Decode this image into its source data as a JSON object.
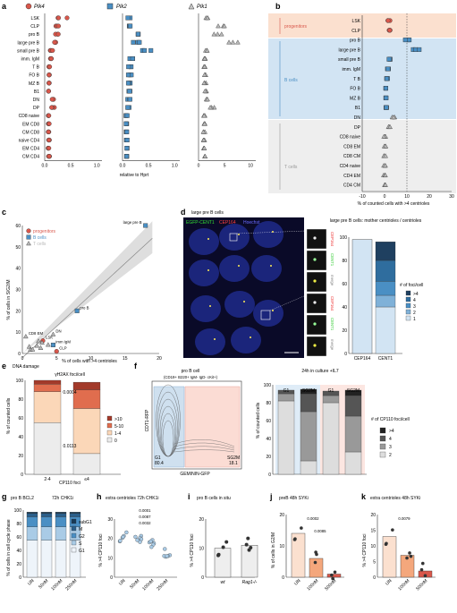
{
  "colors": {
    "red": "#d9574b",
    "blue": "#4a8fc4",
    "grey": "#b8b8b8",
    "peach": "#fbe0cf",
    "lightblue": "#d2e4f3",
    "lightgrey": "#eeeeee"
  },
  "panel_a": {
    "letter": "a",
    "genes": [
      "Plk4",
      "Plk2",
      "Plk1"
    ],
    "xlabel": "relative to Hprt",
    "rows": [
      "LSK",
      "CLP",
      "pro B",
      "large pre B",
      "small pre B",
      "imm. IgM",
      "T B",
      "FO B",
      "MZ B",
      "B1",
      "DN",
      "DP",
      "CD8 naive",
      "EM CD8",
      "CM CD8",
      "naive CD4",
      "EM CD4",
      "CM CD4"
    ],
    "ticks": {
      "Plk4": [
        "0.0",
        "0.5",
        "1.0"
      ],
      "Plk2": [
        "0.0",
        "0.5",
        "1.0"
      ],
      "Plk1": [
        "0",
        "5",
        "10"
      ]
    }
  },
  "chart_data": [
    {
      "type": "scatter",
      "panel": "b",
      "xlabel": "% of counted cells with >4 centrioles",
      "xlim": [
        -10,
        30
      ],
      "ticks": [
        "-10",
        "0",
        "10",
        "20",
        "30"
      ],
      "rows": [
        "LSK",
        "CLP",
        "pro B",
        "large pre B",
        "small pre B",
        "imm. IgM",
        "T B",
        "FO B",
        "MZ B",
        "B1",
        "DN",
        "DP",
        "CD8 naive",
        "CD8 EM",
        "CD8 CM",
        "CD4 naive",
        "CD4 EM",
        "CD4 CM"
      ],
      "values": [
        2,
        2,
        10,
        16,
        2,
        1.5,
        1,
        1,
        1,
        1,
        4,
        2,
        0,
        0,
        0,
        0,
        0,
        0
      ],
      "group_labels": [
        "progenitors",
        "B cells",
        "T cells"
      ]
    },
    {
      "type": "scatter",
      "panel": "c",
      "xlabel": "% of cells with >4 centrioles",
      "ylabel": "% of cells in S/G2/M",
      "xlim": [
        0,
        20
      ],
      "ylim": [
        0,
        60
      ],
      "xticks": [
        "0",
        "5",
        "10",
        "15",
        "20"
      ],
      "yticks": [
        "0",
        "10",
        "20",
        "30",
        "40",
        "50",
        "60"
      ],
      "points": [
        {
          "label": "large pre B",
          "x": 18,
          "y": 60
        },
        {
          "label": "pro B",
          "x": 8,
          "y": 20
        },
        {
          "label": "DN",
          "x": 4.5,
          "y": 9
        },
        {
          "label": "CD8 EM",
          "x": 0.5,
          "y": 8
        },
        {
          "label": "LSK",
          "x": 3,
          "y": 6
        },
        {
          "label": "imm IgM",
          "x": 4.5,
          "y": 4
        },
        {
          "label": "CLP",
          "x": 5,
          "y": 1
        }
      ],
      "legend": [
        "progenitors",
        "B cells",
        "T cells"
      ]
    },
    {
      "type": "bar",
      "panel": "d-right",
      "title": "large pre B cells: mother centrioles / centrioles",
      "categories": [
        "CEP164",
        "CENT1"
      ],
      "yticks": [
        "0",
        "20",
        "40",
        "60",
        "80",
        "100"
      ],
      "legend_title": "# of foci/cell",
      "legend": [
        ">4",
        "4",
        "3",
        "2",
        "1"
      ]
    },
    {
      "type": "bar",
      "panel": "e",
      "title": "DNA damage",
      "subtitle": "γH2AX foci/cell",
      "ylabel": "% of counted cells",
      "categories": [
        "2-4",
        "≤4"
      ],
      "xlabel": "CP110 foci",
      "pvalues": [
        "0.0004",
        "0.0113"
      ],
      "legend": [
        ">10",
        "5-10",
        "1-4",
        "0"
      ]
    },
    {
      "type": "bar",
      "panel": "f-right",
      "title": "24h in culture +IL7",
      "ylabel": "% of counted cells",
      "categories": [
        "G1",
        "SG2M",
        "G1",
        "SG2M"
      ],
      "legend_title": "# of CP110 foci/cell",
      "legend": [
        ">4",
        "4",
        "3",
        "2"
      ]
    },
    {
      "type": "bar",
      "panel": "g",
      "ylabel": "% of cells in cell cycle phase",
      "categories": [
        "UN",
        "50nM",
        "100nM",
        "250nM"
      ],
      "legend": [
        "subG1",
        "M",
        "G2",
        "S",
        "G1"
      ]
    },
    {
      "type": "scatter",
      "panel": "h",
      "title": "extra centrioles 72h CHK1i",
      "ylabel": "% >4 CP110 foci",
      "categories": [
        "UN",
        "50nM",
        "100nM",
        "250nM"
      ],
      "pvalues": [
        "0.0001",
        "0.0087",
        "0.0032"
      ],
      "yticks": [
        "0",
        "10",
        "20",
        "30"
      ]
    },
    {
      "type": "bar",
      "panel": "i",
      "title": "pro B cells in situ",
      "ylabel": "% >4 CP110 foci",
      "categories": [
        "wt",
        "Rag1-/-"
      ],
      "yticks": [
        "0",
        "10",
        "20"
      ]
    },
    {
      "type": "bar",
      "panel": "j",
      "title": "preB 48h SYKi",
      "ylabel": "% of cells in G2/M",
      "categories": [
        "UN",
        "100nM",
        "500nM"
      ],
      "pvalues": [
        "0.0002",
        "0.0085"
      ],
      "yticks": [
        "0",
        "10",
        "20"
      ]
    },
    {
      "type": "bar",
      "panel": "k",
      "title": "extra centrioles 48h SYKi",
      "ylabel": "% >4 CP110 foci",
      "categories": [
        "UN",
        "100nM",
        "500nM"
      ],
      "pvalues": [
        "0.0079"
      ],
      "yticks": [
        "0",
        "5",
        "10",
        "15",
        "20"
      ]
    }
  ],
  "panel_d": {
    "letter": "d",
    "title": "large pre B cells",
    "stain1": "EGFP-CENT1",
    "stain2": "CEP164",
    "stain3": "Hoechst",
    "insets": [
      "CEP164",
      "CENT1",
      "merge",
      "CEP164",
      "CENT1",
      "merge"
    ]
  },
  "panel_f": {
    "letter": "f",
    "title": "pro B cell",
    "gate": "(CD19+ B220+ IgM- IgD- cKit+)",
    "ylabel": "CDT1-RFP",
    "xlabel": "GEMININ-GFP",
    "g1": "G1",
    "g1val": "80.4",
    "sg2m": "SG2M",
    "sg2mval": "18.1"
  },
  "panel_g": {
    "letter": "g",
    "title": "pro B BCL2",
    "title2": "72h CHK1i"
  },
  "letters": {
    "b": "b",
    "c": "c",
    "e": "e",
    "h": "h",
    "i": "i",
    "j": "j",
    "k": "k"
  }
}
